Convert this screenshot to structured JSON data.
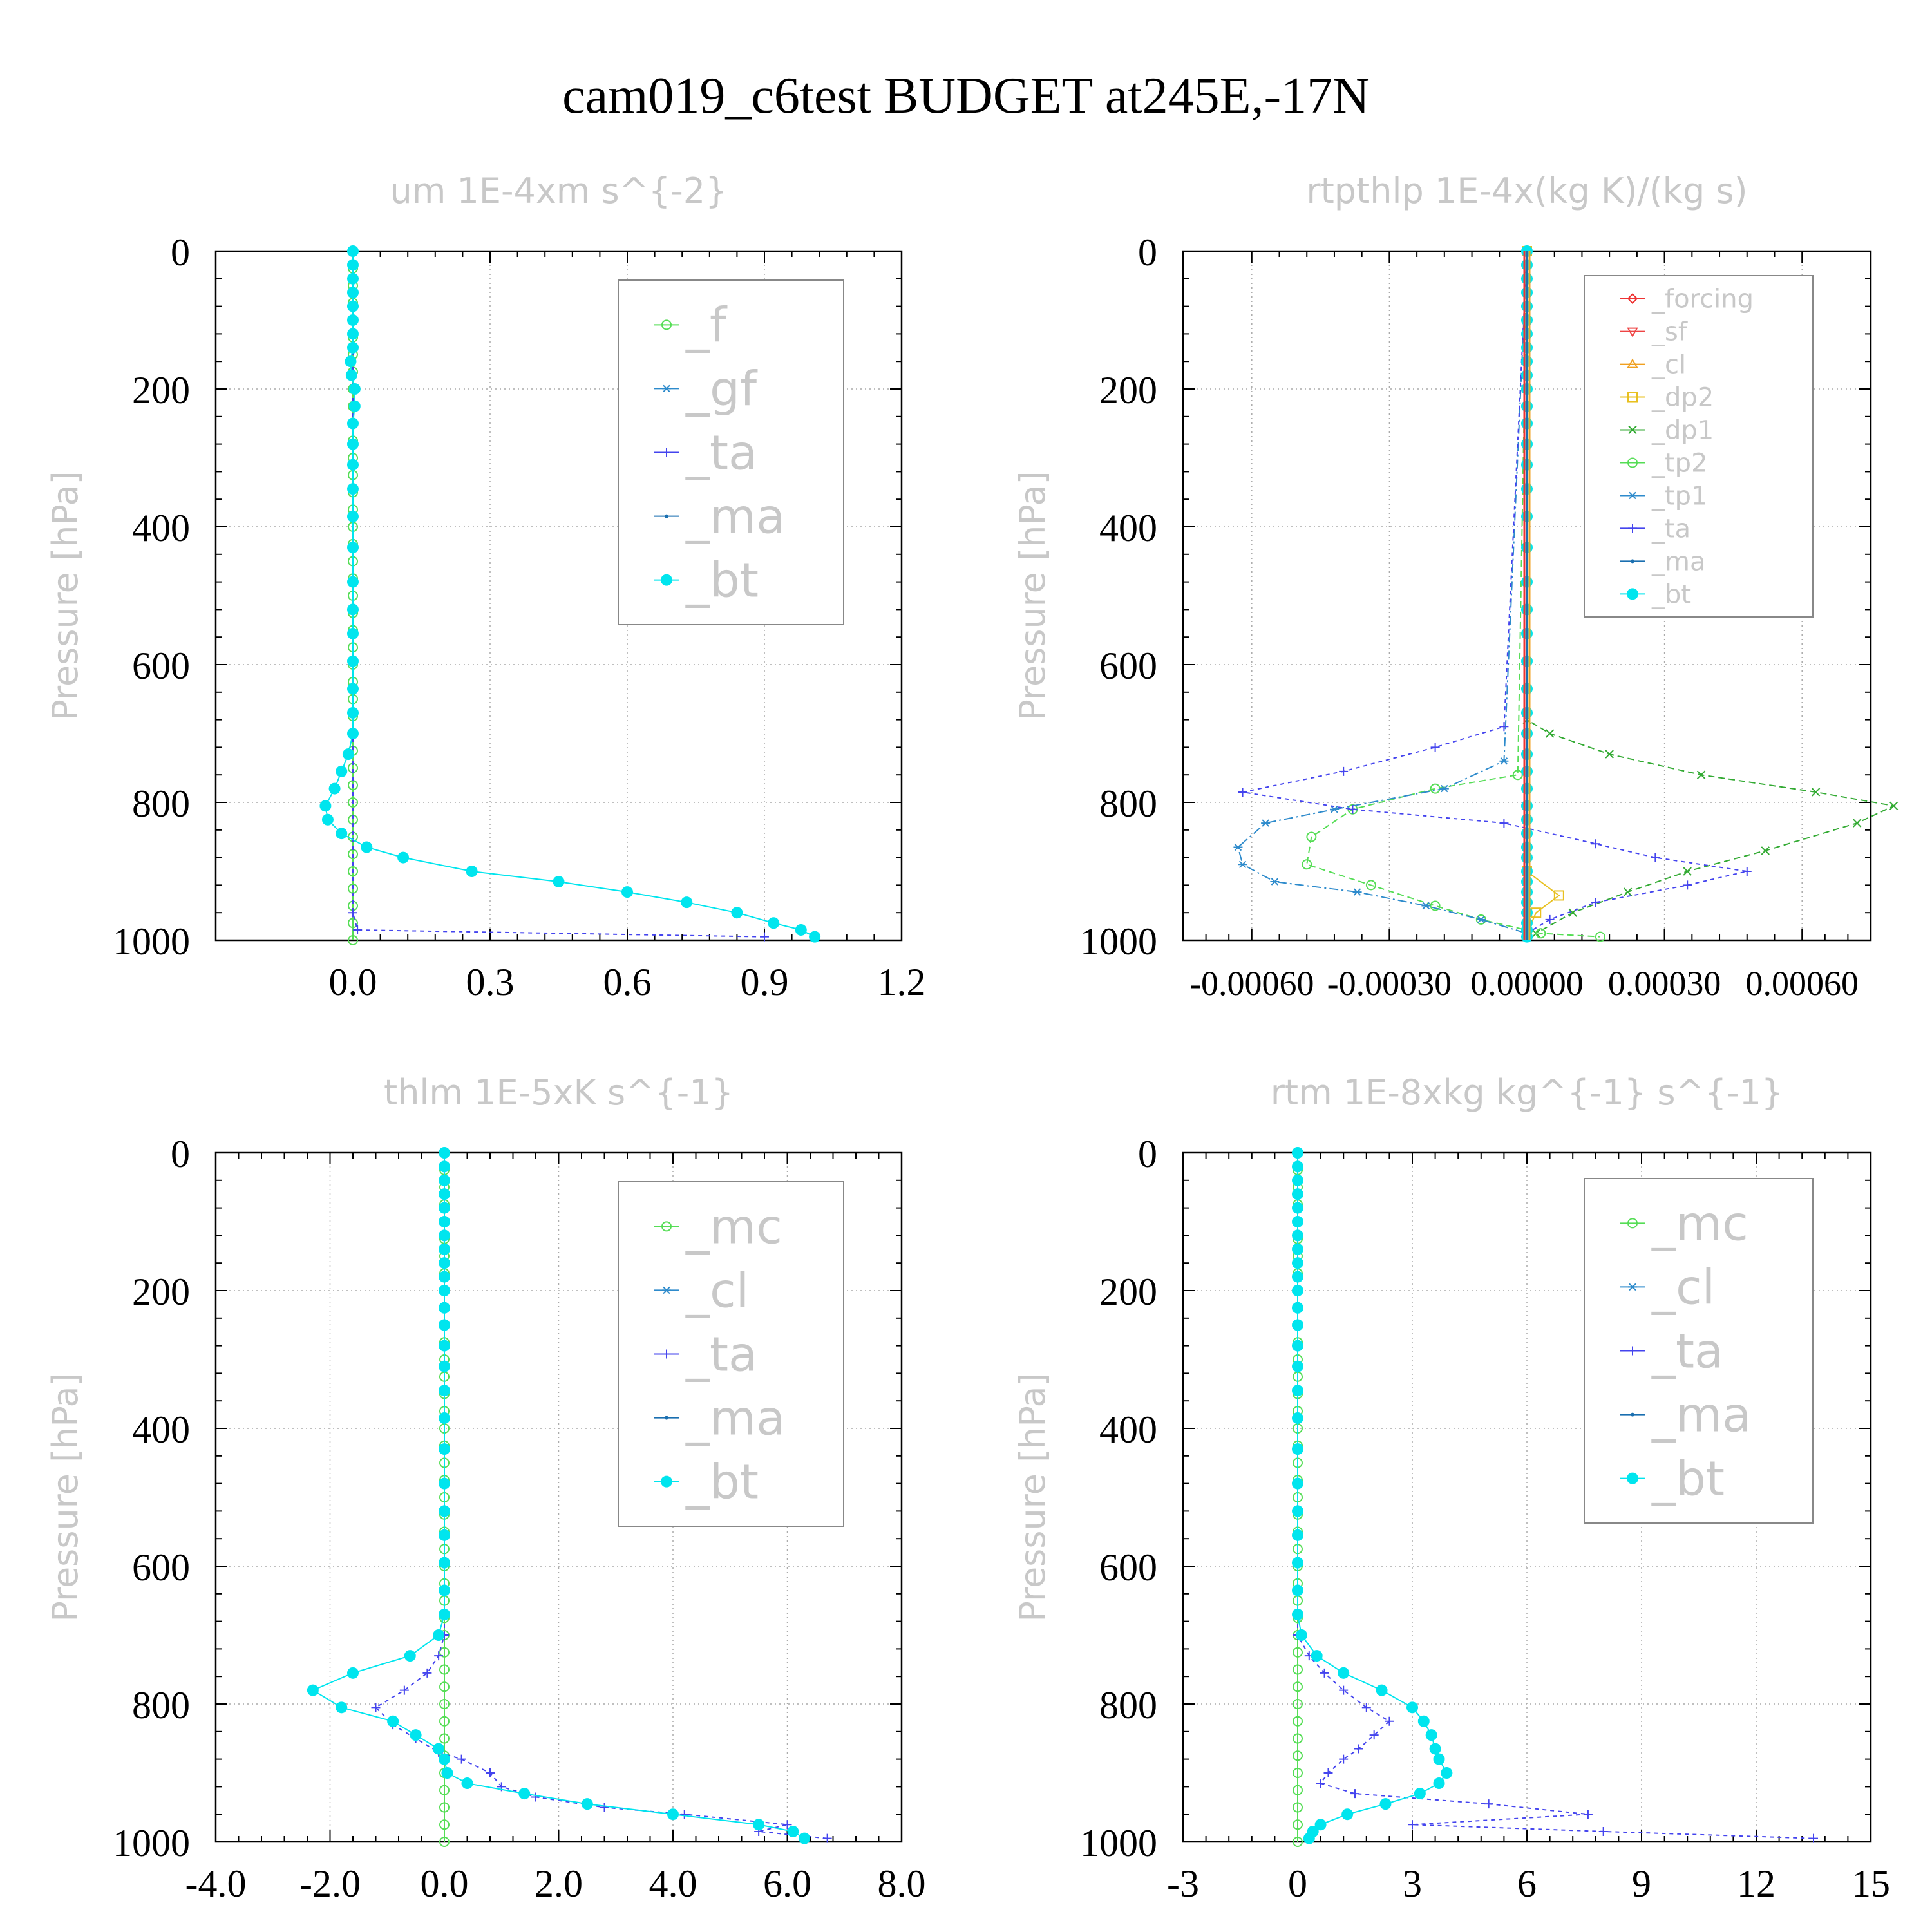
{
  "figure_title": "cam019_c6test  BUDGET at245E,-17N",
  "colors": {
    "_f": "#55dd55",
    "_gf": "#2e8bcc",
    "_ta": "#4444ee",
    "_ma": "#1a6fb0",
    "_bt": "#00e5ee",
    "_mc": "#55dd55",
    "_cl": "#2e8bcc",
    "_forcing": "#ee3333",
    "_sf": "#ee4444",
    "_cl_orange": "#f0a020",
    "_dp2": "#e8c020",
    "_dp1": "#33aa33",
    "_tp2": "#55dd55",
    "_tp1": "#2e8bcc",
    "axis": "#000000",
    "grid": "#aaaaaa",
    "panel_title": "#c8c8c8"
  },
  "chart_data": [
    {
      "type": "line",
      "title": "um   1E-4xm s^{-2}",
      "ylabel": "Pressure [hPa]",
      "xlim": [
        -0.3,
        1.2
      ],
      "ylim": [
        1000,
        0
      ],
      "xticks": [
        0.0,
        0.3,
        0.6,
        0.9,
        1.2
      ],
      "xtick_labels": [
        "0.0",
        "0.3",
        "0.6",
        "0.9",
        "1.2"
      ],
      "yticks": [
        0,
        200,
        400,
        600,
        800,
        1000
      ],
      "ytick_labels": [
        "0",
        "200",
        "400",
        "600",
        "800",
        "1000"
      ],
      "legend": [
        "_f",
        "_gf",
        "_ta",
        "_ma",
        "_bt"
      ],
      "legend_font": "big",
      "series": [
        {
          "name": "_f",
          "y": [
            0,
            500,
            1000
          ],
          "x": [
            0.0,
            0.0,
            0.0
          ]
        },
        {
          "name": "_ta",
          "y": [
            0,
            960,
            985,
            995
          ],
          "x": [
            0.0,
            0.0,
            0.01,
            0.9
          ]
        },
        {
          "name": "_bt",
          "y": [
            0,
            20,
            40,
            60,
            80,
            100,
            120,
            140,
            160,
            180,
            200,
            225,
            250,
            280,
            310,
            345,
            385,
            430,
            480,
            520,
            555,
            595,
            635,
            670,
            700,
            730,
            755,
            780,
            805,
            825,
            845,
            865,
            880,
            900,
            915,
            930,
            945,
            960,
            975,
            985,
            995
          ],
          "x": [
            0.0,
            0.0,
            0.0,
            0.0,
            0.0,
            0.0,
            0.0,
            0.0,
            -0.005,
            -0.003,
            0.004,
            0.004,
            0.0,
            0.0,
            0.0,
            0.0,
            0.0,
            0.0,
            0.0,
            0.0,
            0.0,
            0.0,
            0.0,
            0.0,
            0.0,
            -0.01,
            -0.025,
            -0.04,
            -0.06,
            -0.055,
            -0.025,
            0.03,
            0.11,
            0.26,
            0.45,
            0.6,
            0.73,
            0.84,
            0.92,
            0.98,
            1.01
          ]
        }
      ]
    },
    {
      "type": "line",
      "title": "rtpthlp   1E-4x(kg K)/(kg s)",
      "ylabel": "Pressure [hPa]",
      "xlim": [
        -0.00075,
        0.00075
      ],
      "ylim": [
        1000,
        0
      ],
      "xticks": [
        -0.0006,
        -0.0003,
        0.0,
        0.0003,
        0.0006
      ],
      "xtick_labels": [
        "-0.00060",
        "-0.00030",
        "0.00000",
        "0.00030",
        "0.00060"
      ],
      "yticks": [
        0,
        200,
        400,
        600,
        800,
        1000
      ],
      "ytick_labels": [
        "0",
        "200",
        "400",
        "600",
        "800",
        "1000"
      ],
      "legend": [
        "_forcing",
        "_sf",
        "_cl",
        "_dp2",
        "_dp1",
        "_tp2",
        "_tp1",
        "_ta",
        "_ma",
        "_bt"
      ],
      "legend_font": "small",
      "series": [
        {
          "name": "_dp1",
          "y": [
            0,
            680,
            700,
            730,
            760,
            785,
            805,
            830,
            870,
            900,
            930,
            960,
            990
          ],
          "x": [
            0,
            0,
            5e-05,
            0.00018,
            0.00038,
            0.00063,
            0.0008,
            0.00072,
            0.00052,
            0.00035,
            0.00022,
            0.0001,
            2e-05
          ]
        },
        {
          "name": "_tp2",
          "y": [
            0,
            760,
            780,
            810,
            850,
            890,
            920,
            950,
            970,
            990,
            995
          ],
          "x": [
            0,
            -2e-05,
            -0.0002,
            -0.00038,
            -0.00047,
            -0.00048,
            -0.00034,
            -0.0002,
            -0.0001,
            3e-05,
            0.00016
          ]
        },
        {
          "name": "_tp1",
          "y": [
            0,
            740,
            780,
            810,
            830,
            865,
            890,
            915,
            930,
            950,
            970,
            990
          ],
          "x": [
            0,
            -5e-05,
            -0.00018,
            -0.00042,
            -0.00057,
            -0.00063,
            -0.00062,
            -0.00055,
            -0.00037,
            -0.00022,
            -0.0001,
            0.0
          ]
        },
        {
          "name": "_ta",
          "y": [
            0,
            690,
            720,
            755,
            785,
            810,
            830,
            860,
            880,
            900,
            920,
            945,
            970,
            990
          ],
          "x": [
            0,
            -5e-05,
            -0.0002,
            -0.0004,
            -0.00062,
            -0.00038,
            -5e-05,
            0.00015,
            0.00028,
            0.00048,
            0.00035,
            0.00015,
            5e-05,
            0.0
          ]
        },
        {
          "name": "_dp2",
          "y": [
            0,
            900,
            935,
            960,
            990
          ],
          "x": [
            0,
            0,
            7e-05,
            2e-05,
            0
          ]
        },
        {
          "name": "_bt",
          "y": [
            0,
            20,
            40,
            60,
            80,
            100,
            120,
            140,
            160,
            180,
            200,
            225,
            250,
            280,
            310,
            345,
            385,
            430,
            480,
            520,
            555,
            595,
            635,
            670,
            700,
            730,
            755,
            780,
            805,
            825,
            845,
            865,
            880,
            900,
            915,
            930,
            945,
            960,
            975,
            985,
            995
          ],
          "x": [
            0,
            0,
            0,
            0,
            0,
            0,
            0,
            0,
            0,
            0,
            0,
            0,
            0,
            0,
            0,
            0,
            0,
            0,
            0,
            0,
            0,
            0,
            0,
            0,
            0,
            0,
            0,
            0,
            0,
            0,
            0,
            0,
            0,
            0,
            0,
            0,
            0,
            0,
            0,
            0,
            0
          ]
        }
      ]
    },
    {
      "type": "line",
      "title": "thlm   1E-5xK s^{-1}",
      "ylabel": "Pressure [hPa]",
      "xlim": [
        -4.0,
        8.0
      ],
      "ylim": [
        1000,
        0
      ],
      "xticks": [
        -4.0,
        -2.0,
        0.0,
        2.0,
        4.0,
        6.0,
        8.0
      ],
      "xtick_labels": [
        "-4.0",
        "-2.0",
        "0.0",
        "2.0",
        "4.0",
        "6.0",
        "8.0"
      ],
      "yticks": [
        0,
        200,
        400,
        600,
        800,
        1000
      ],
      "ytick_labels": [
        "0",
        "200",
        "400",
        "600",
        "800",
        "1000"
      ],
      "legend": [
        "_mc",
        "_cl",
        "_ta",
        "_ma",
        "_bt"
      ],
      "legend_font": "big",
      "series": [
        {
          "name": "_mc",
          "y": [
            0,
            500,
            1000
          ],
          "x": [
            0,
            0,
            0
          ]
        },
        {
          "name": "_ta",
          "y": [
            0,
            700,
            730,
            755,
            780,
            805,
            830,
            850,
            870,
            880,
            900,
            920,
            935,
            950,
            960,
            975,
            985,
            995
          ],
          "x": [
            0,
            0,
            -0.1,
            -0.3,
            -0.7,
            -1.2,
            -0.9,
            -0.5,
            -0.1,
            0.3,
            0.8,
            1.0,
            1.6,
            2.8,
            4.2,
            6.0,
            5.5,
            6.7
          ]
        },
        {
          "name": "_bt",
          "y": [
            0,
            20,
            40,
            60,
            80,
            100,
            120,
            140,
            160,
            180,
            200,
            225,
            250,
            280,
            310,
            345,
            385,
            430,
            480,
            520,
            555,
            595,
            635,
            670,
            700,
            730,
            755,
            780,
            805,
            825,
            845,
            865,
            880,
            900,
            915,
            930,
            945,
            960,
            975,
            985,
            995
          ],
          "x": [
            0,
            0,
            0,
            0,
            0,
            0,
            0,
            0,
            0,
            0,
            0,
            0,
            0,
            0,
            0,
            0,
            0,
            0,
            0,
            0,
            0,
            0,
            0,
            0,
            -0.1,
            -0.6,
            -1.6,
            -2.3,
            -1.8,
            -0.9,
            -0.5,
            -0.1,
            0.0,
            0.05,
            0.4,
            1.4,
            2.5,
            4.0,
            5.5,
            6.1,
            6.3
          ]
        }
      ]
    },
    {
      "type": "line",
      "title": "rtm   1E-8xkg kg^{-1} s^{-1}",
      "ylabel": "Pressure [hPa]",
      "xlim": [
        -3,
        15
      ],
      "ylim": [
        1000,
        0
      ],
      "xticks": [
        -3,
        0,
        3,
        6,
        9,
        12,
        15
      ],
      "xtick_labels": [
        "-3",
        "0",
        "3",
        "6",
        "9",
        "12",
        "15"
      ],
      "yticks": [
        0,
        200,
        400,
        600,
        800,
        1000
      ],
      "ytick_labels": [
        "0",
        "200",
        "400",
        "600",
        "800",
        "1000"
      ],
      "legend": [
        "_mc",
        "_cl",
        "_ta",
        "_ma",
        "_bt"
      ],
      "legend_font": "big",
      "series": [
        {
          "name": "_mc",
          "y": [
            0,
            500,
            1000
          ],
          "x": [
            0,
            0,
            0
          ]
        },
        {
          "name": "_ta",
          "y": [
            0,
            700,
            730,
            755,
            780,
            805,
            825,
            845,
            865,
            880,
            900,
            915,
            930,
            945,
            960,
            975,
            985,
            995
          ],
          "x": [
            0,
            0,
            0.3,
            0.7,
            1.2,
            1.8,
            2.4,
            2.0,
            1.6,
            1.2,
            0.8,
            0.6,
            1.5,
            5.0,
            7.6,
            3.0,
            8.0,
            13.5
          ]
        },
        {
          "name": "_bt",
          "y": [
            0,
            20,
            40,
            60,
            80,
            100,
            120,
            140,
            160,
            180,
            200,
            225,
            250,
            280,
            310,
            345,
            385,
            430,
            480,
            520,
            555,
            595,
            635,
            670,
            700,
            730,
            755,
            780,
            805,
            825,
            845,
            865,
            880,
            900,
            915,
            930,
            945,
            960,
            975,
            985,
            995
          ],
          "x": [
            0,
            0,
            0,
            0,
            0,
            0,
            0,
            0,
            0,
            0,
            0,
            0,
            0,
            0,
            0,
            0,
            0,
            0,
            0,
            0,
            0,
            0,
            0,
            0,
            0.1,
            0.5,
            1.2,
            2.2,
            3.0,
            3.3,
            3.5,
            3.6,
            3.7,
            3.9,
            3.7,
            3.2,
            2.3,
            1.3,
            0.6,
            0.4,
            0.3
          ]
        }
      ]
    }
  ]
}
